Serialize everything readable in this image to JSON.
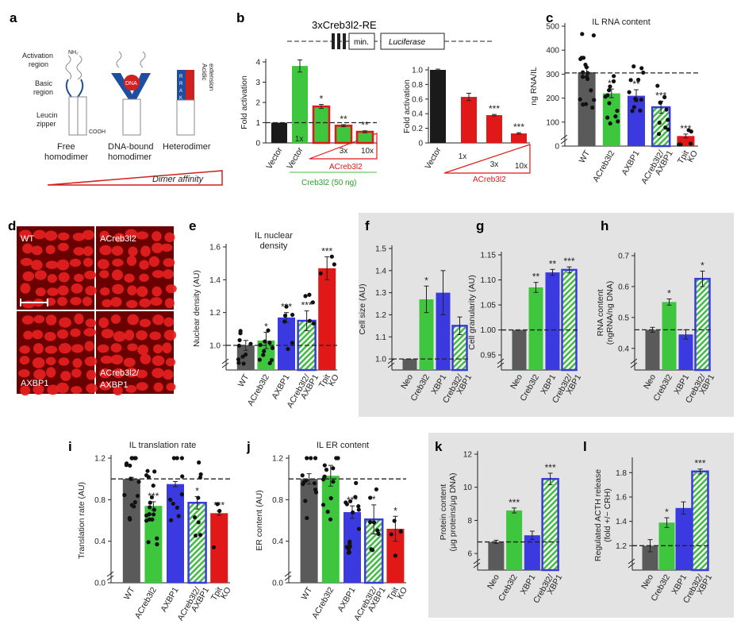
{
  "panels": {
    "a": {
      "letter": "a",
      "labels": {
        "activation": "Activation\nregion",
        "basic": "Basic\nregion",
        "leucine": "Leucin\nzipper",
        "nh2": "NH₂",
        "cooh": "COOH",
        "dna": "DNA",
        "free": "Free\nhomodimer",
        "bound": "DNA-bound\nhomodimer",
        "hetero": "Heterodimer",
        "acidic": "Acidic\nextension",
        "rrak": "R\nR\nA\nK",
        "affinity": "Dimer affinity"
      }
    },
    "b": {
      "letter": "b",
      "construct": "3xCreb3l2-RE",
      "min": "min.",
      "luciferase": "Luciferase",
      "ylabel": "Fold activation",
      "green_label": "Creb3l2 (50 ng)",
      "red_label": "ACreb3l2",
      "red_label2": "ACreb3l2"
    },
    "c": {
      "letter": "c"
    },
    "d": {
      "letter": "d",
      "labels": [
        "WT",
        "ACreb3l2",
        "AXBP1",
        "ACreb3l2/\nAXBP1"
      ]
    },
    "e": {
      "letter": "e"
    },
    "f": {
      "letter": "f"
    },
    "g": {
      "letter": "g"
    },
    "h": {
      "letter": "h"
    },
    "i": {
      "letter": "i"
    },
    "j": {
      "letter": "j"
    },
    "k": {
      "letter": "k"
    },
    "l": {
      "letter": "l"
    }
  },
  "colors": {
    "gray": "#5a5a5a",
    "black": "#1a1a1a",
    "green": "#3ec63e",
    "blue": "#3a3ae0",
    "red": "#e01818",
    "hatch": "#44bb44",
    "panelbg": "#e3e3e3"
  },
  "chart_data": [
    {
      "id": "b1",
      "type": "bar",
      "ylabel": "Fold activation",
      "ylim": [
        0,
        4
      ],
      "yticks": [
        0,
        1,
        2,
        3,
        4
      ],
      "refline": 1,
      "categories": [
        "Vector",
        "Vector",
        "1x",
        "3x",
        "10x"
      ],
      "values": [
        1.0,
        3.8,
        1.8,
        0.85,
        0.55
      ],
      "errors": [
        0,
        0.3,
        0.1,
        0.05,
        0.05
      ],
      "colors": [
        "black",
        "green",
        "green-redborder",
        "green-redborder",
        "green-redborder"
      ],
      "stars": [
        "",
        "",
        "*",
        "**",
        "**"
      ]
    },
    {
      "id": "b2",
      "type": "bar",
      "ylabel": "Fold activation",
      "ylim": [
        0,
        1
      ],
      "yticks": [
        0,
        0.2,
        0.4,
        0.6,
        0.8,
        1
      ],
      "categories": [
        "Vector",
        "1x",
        "3x",
        "10x"
      ],
      "values": [
        1.0,
        0.63,
        0.38,
        0.13
      ],
      "errors": [
        0.01,
        0.05,
        0.01,
        0.01
      ],
      "colors": [
        "black",
        "red",
        "red",
        "red"
      ],
      "stars": [
        "",
        "",
        "***",
        "***"
      ]
    },
    {
      "id": "c",
      "type": "bar",
      "title": "IL RNA content",
      "ylabel": "ng RNA/IL",
      "ylim": [
        0,
        500
      ],
      "yticks": [
        0,
        100,
        200,
        300,
        400,
        500
      ],
      "refline": 305,
      "categories": [
        "WT",
        "ACreb3l2",
        "AXBP1",
        "ACreb3l2/\nAXBP1",
        "Tpit\nKO"
      ],
      "values": [
        308,
        220,
        210,
        162,
        42
      ],
      "errors": [
        22,
        18,
        25,
        25,
        8
      ],
      "colors": [
        "gray",
        "green",
        "blue",
        "hatch",
        "red"
      ],
      "stars": [
        "",
        "**",
        "**",
        "***",
        "***"
      ]
    },
    {
      "id": "e",
      "type": "bar",
      "title": "IL nuclear\ndensity",
      "ylabel": "Nuclear density (AU)",
      "ylim": [
        0.85,
        1.6
      ],
      "yticks": [
        1.0,
        1.2,
        1.4,
        1.6
      ],
      "refline": 1.0,
      "categories": [
        "WT",
        "ACreb3l2",
        "AXBP1",
        "ACreb3l2/\nAXBP1",
        "Tpit\nKO"
      ],
      "values": [
        1.0,
        1.03,
        1.17,
        1.15,
        1.47
      ],
      "errors": [
        0.03,
        0.05,
        0.03,
        0.06,
        0.07
      ],
      "colors": [
        "gray",
        "green",
        "blue",
        "hatch",
        "red"
      ],
      "stars": [
        "",
        "*",
        "***",
        "***",
        "***"
      ]
    },
    {
      "id": "f",
      "type": "bar",
      "ylabel": "Cell size (AU)",
      "ylim": [
        0.95,
        1.5
      ],
      "yticks": [
        1.0,
        1.1,
        1.2,
        1.3,
        1.4,
        1.5
      ],
      "refline": 1.0,
      "categories": [
        "Neo",
        "Creb3l2",
        "XBP1",
        "Creb3l2/\nXBP1"
      ],
      "values": [
        1.0,
        1.27,
        1.3,
        1.15
      ],
      "errors": [
        0,
        0.06,
        0.1,
        0.04
      ],
      "colors": [
        "gray",
        "green",
        "blue",
        "hatch"
      ],
      "stars": [
        "",
        "*",
        "",
        ""
      ]
    },
    {
      "id": "g",
      "type": "bar",
      "ylabel": "Cell granularity (AU)",
      "ylim": [
        0.92,
        1.15
      ],
      "yticks": [
        0.95,
        1.0,
        1.05,
        1.1,
        1.15
      ],
      "refline": 1.0,
      "categories": [
        "Neo",
        "Creb3l2",
        "XBP1",
        "Creb3l2/\nXBP1"
      ],
      "values": [
        1.0,
        1.085,
        1.115,
        1.12
      ],
      "errors": [
        0,
        0.01,
        0.006,
        0.006
      ],
      "colors": [
        "gray",
        "green",
        "blue",
        "hatch"
      ],
      "stars": [
        "",
        "**",
        "**",
        "***"
      ]
    },
    {
      "id": "h",
      "type": "bar",
      "ylabel": "RNA content\n(ngRNA/ng DNA)",
      "ylim": [
        0.33,
        0.7
      ],
      "yticks": [
        0.4,
        0.5,
        0.6,
        0.7
      ],
      "refline": 0.46,
      "categories": [
        "Neo",
        "Creb3l2",
        "XBP1",
        "Creb3l2/\nXBP1"
      ],
      "values": [
        0.46,
        0.55,
        0.445,
        0.625
      ],
      "errors": [
        0.008,
        0.01,
        0.015,
        0.025
      ],
      "colors": [
        "gray",
        "green",
        "blue",
        "hatch"
      ],
      "stars": [
        "",
        "*",
        "",
        "*"
      ]
    },
    {
      "id": "i",
      "type": "bar",
      "title": "IL translation rate",
      "ylabel": "Translation rate (AU)",
      "ylim": [
        0,
        1.2
      ],
      "yticks": [
        0,
        0.4,
        0.8,
        1.2
      ],
      "yticklabels": [
        "0.0",
        "0.4",
        "0.8",
        "1.2"
      ],
      "refline": 1.0,
      "categories": [
        "WT",
        "ACreb3l2",
        "AXBP1",
        "ACreb3l2/\nAXBP1",
        "Tpit\nKO"
      ],
      "values": [
        1.0,
        0.74,
        0.95,
        0.77,
        0.67
      ],
      "errors": [
        0.015,
        0.04,
        0.025,
        0.06,
        0.02
      ],
      "colors": [
        "gray",
        "green",
        "blue",
        "hatch",
        "red"
      ],
      "stars": [
        "",
        "***",
        "",
        "*",
        "***"
      ]
    },
    {
      "id": "j",
      "type": "bar",
      "title": "IL ER content",
      "ylabel": "ER content (AU)",
      "ylim": [
        0,
        1.2
      ],
      "yticks": [
        0,
        0.4,
        0.8,
        1.2
      ],
      "yticklabels": [
        "0.0",
        "0.4",
        "0.8",
        "1.2"
      ],
      "refline": 1.0,
      "categories": [
        "WT",
        "ACreb3l2",
        "AXBP1",
        "ACreb3l2/\nAXBP1",
        "Tpit\nKO"
      ],
      "values": [
        1.0,
        1.03,
        0.68,
        0.61,
        0.52
      ],
      "errors": [
        0.05,
        0.1,
        0.06,
        0.14,
        0.12
      ],
      "colors": [
        "gray",
        "green",
        "blue",
        "hatch",
        "red"
      ],
      "stars": [
        "",
        "",
        "***",
        "*",
        "*"
      ]
    },
    {
      "id": "k",
      "type": "bar",
      "ylabel": "Protein content\n(μg proteins/μg DNA)",
      "ylim": [
        5,
        12
      ],
      "yticks": [
        6,
        8,
        10,
        12
      ],
      "refline": 6.7,
      "categories": [
        "Neo",
        "Creb3l2",
        "XBP1",
        "Creb3l2/\nXBP1"
      ],
      "values": [
        6.7,
        8.6,
        7.1,
        10.5
      ],
      "errors": [
        0.1,
        0.15,
        0.25,
        0.35
      ],
      "colors": [
        "gray",
        "green",
        "blue",
        "hatch"
      ],
      "stars": [
        "",
        "***",
        "",
        "***"
      ]
    },
    {
      "id": "l",
      "type": "bar",
      "ylabel": "Regulated ACTH release\n(fold +/− CRH)",
      "ylim": [
        1.0,
        1.9
      ],
      "yticks": [
        1.2,
        1.4,
        1.6,
        1.8
      ],
      "refline": 1.2,
      "categories": [
        "Neo",
        "Creb3l2",
        "XBP1",
        "Creb3l2/\nXBP1"
      ],
      "values": [
        1.2,
        1.39,
        1.51,
        1.81
      ],
      "errors": [
        0.05,
        0.04,
        0.05,
        0.02
      ],
      "colors": [
        "gray",
        "green",
        "blue",
        "hatch"
      ],
      "stars": [
        "",
        "*",
        "",
        "***"
      ]
    }
  ]
}
